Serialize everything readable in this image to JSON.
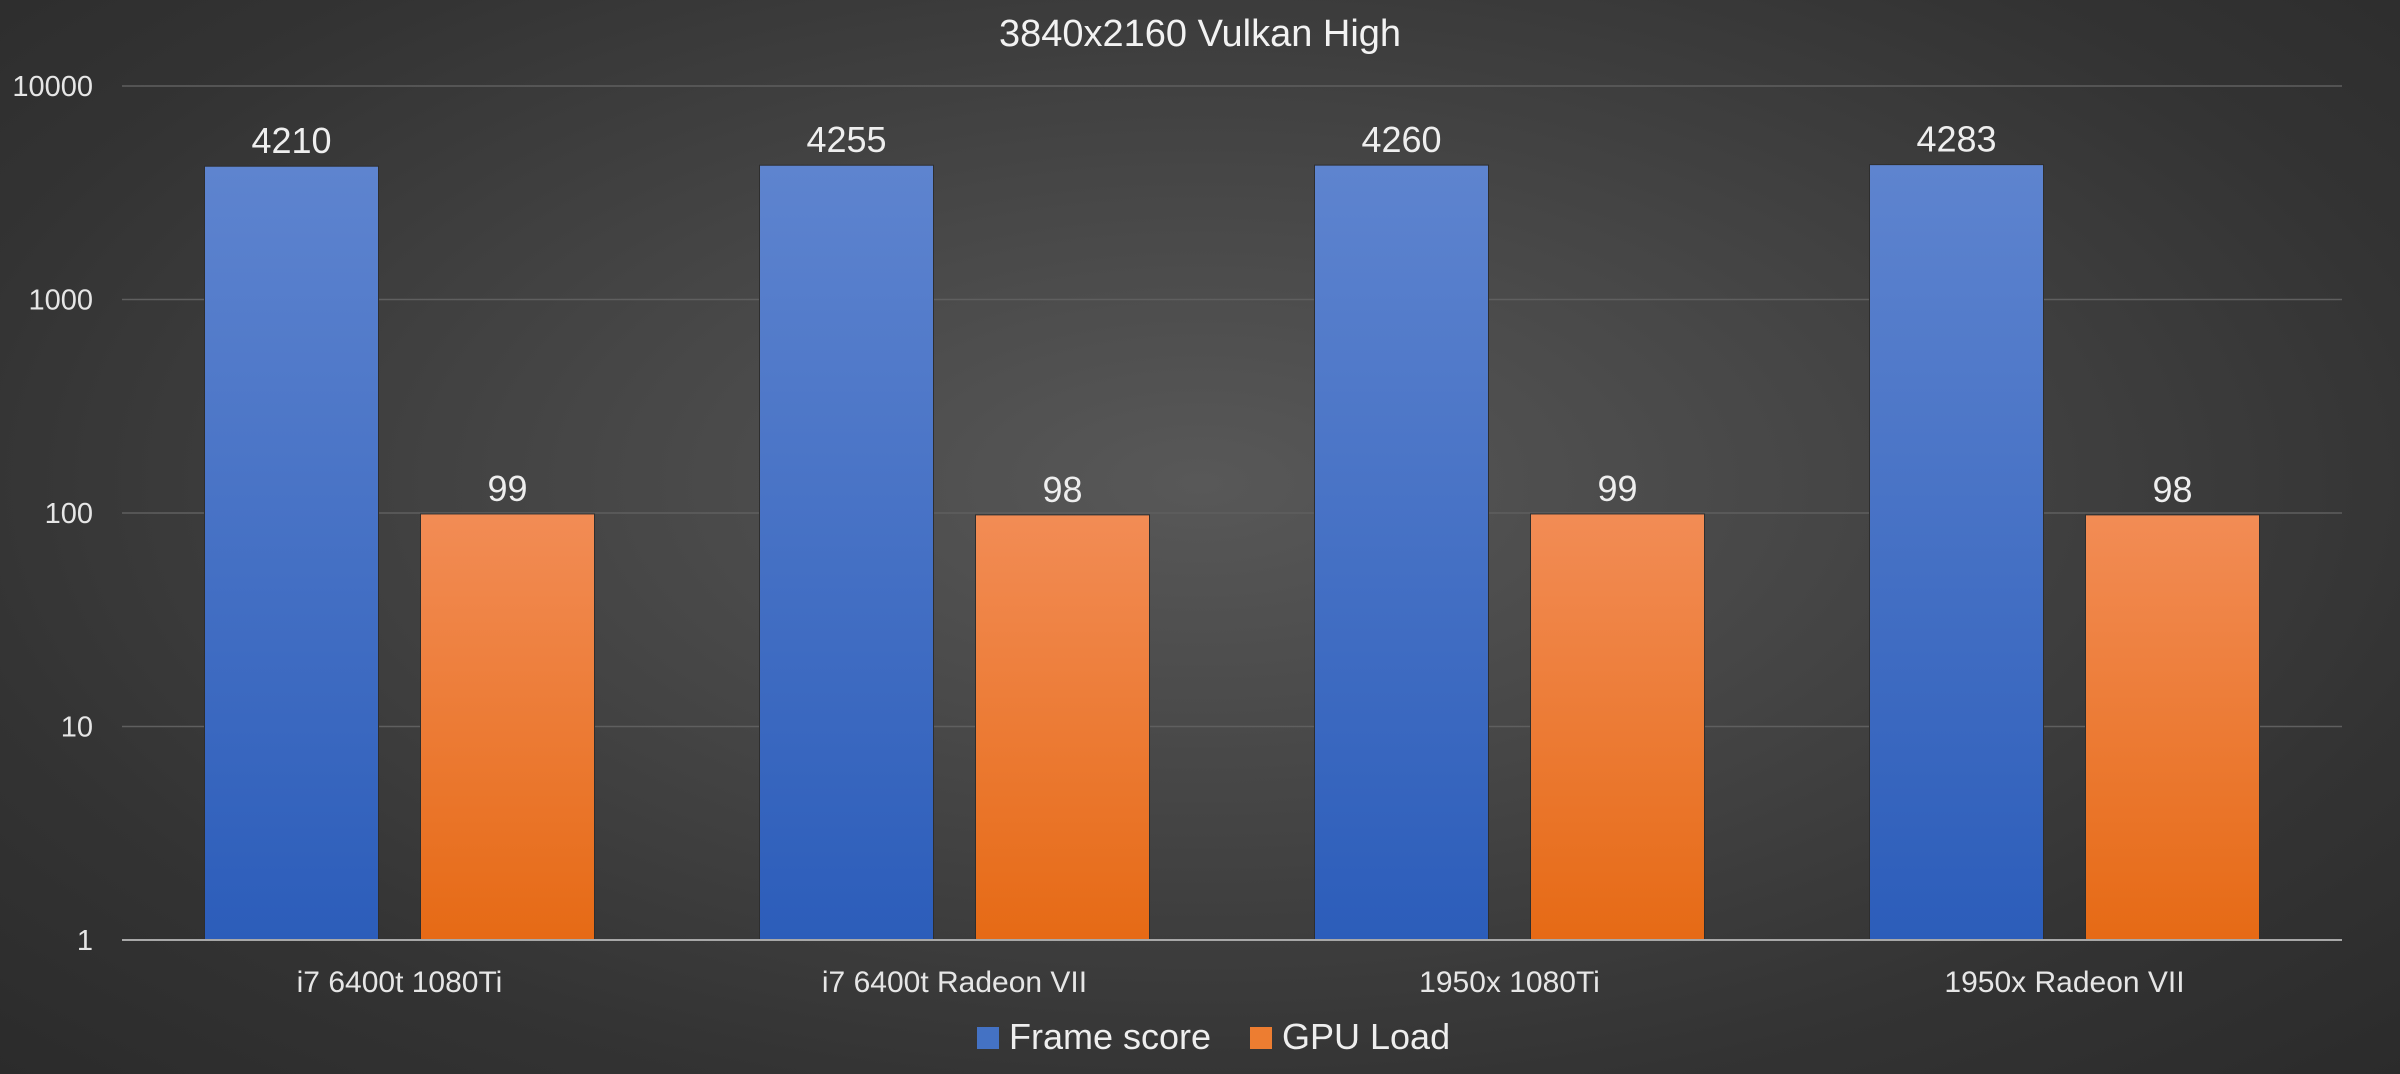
{
  "chart_data": {
    "type": "bar",
    "title": "3840x2160 Vulkan High",
    "categories": [
      "i7 6400t 1080Ti",
      "i7 6400t Radeon VII",
      "1950x 1080Ti",
      "1950x Radeon VII"
    ],
    "series": [
      {
        "name": "Frame score",
        "values": [
          4210,
          4255,
          4260,
          4283
        ],
        "color": "#4472c4"
      },
      {
        "name": "GPU Load",
        "values": [
          99,
          98,
          99,
          98
        ],
        "color": "#ed7d31"
      }
    ],
    "yscale": "log",
    "ylim": [
      1,
      10000
    ],
    "yticks": [
      "1",
      "10",
      "100",
      "1000",
      "10000"
    ],
    "grid": true,
    "legend": "bottom",
    "xlabel": "",
    "ylabel": ""
  }
}
